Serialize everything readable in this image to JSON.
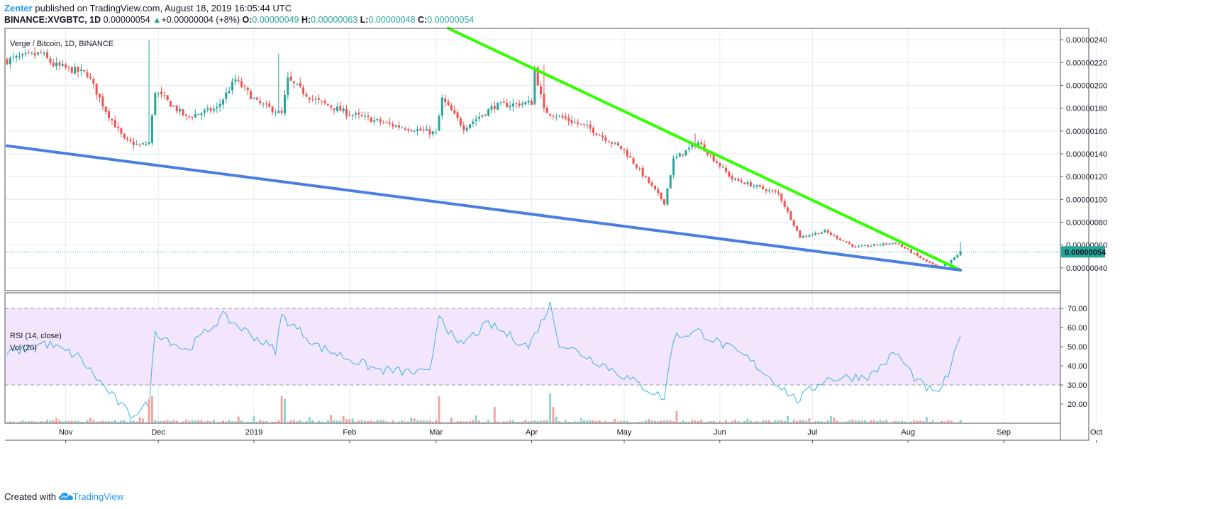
{
  "header": {
    "author": "Zenter",
    "published_text": "published on TradingView.com, August 18, 2019 16:05:44 UTC",
    "symbol": "BINANCE:XVGBTC, 1D",
    "last": "0.00000054",
    "change_arrow": "▲",
    "change": "+0.00000004 (+8%)",
    "o_label": "O:",
    "o": "0.00000049",
    "h_label": "H:",
    "h": "0.00000063",
    "l_label": "L:",
    "l": "0.00000048",
    "c_label": "C:",
    "c": "0.00000054"
  },
  "footer": {
    "created_with": "Created with",
    "brand": "TradingView",
    "brand_icon": "tradingview-cloud-icon"
  },
  "chart_data": {
    "type": "candlestick",
    "title": "Verge / Bitcoin, 1D, BINANCE",
    "x_tick_labels": [
      "Nov",
      "Dec",
      "2019",
      "Feb",
      "Mar",
      "Apr",
      "May",
      "Jun",
      "Jul",
      "Aug",
      "Sep",
      "Oct"
    ],
    "x_tick_dates": [
      "2018-11-01",
      "2018-12-01",
      "2019-01-01",
      "2019-02-01",
      "2019-03-01",
      "2019-04-01",
      "2019-05-01",
      "2019-06-01",
      "2019-07-01",
      "2019-08-01",
      "2019-09-01",
      "2019-10-01"
    ],
    "price_axis": {
      "ticks": [
        "0.00000040",
        "0.00000060",
        "0.00000080",
        "0.00000100",
        "0.00000120",
        "0.00000140",
        "0.00000160",
        "0.00000180",
        "0.00000200",
        "0.00000220",
        "0.00000240"
      ],
      "tick_values": [
        40,
        60,
        80,
        100,
        120,
        140,
        160,
        180,
        200,
        220,
        240
      ],
      "unit": "1e-8 BTC",
      "range": [
        20,
        250
      ],
      "last_price_label": "0.00000054",
      "last_price_value": 54
    },
    "colors": {
      "up": "#26a69a",
      "down": "#ef5350",
      "grid": "#e1ecf2",
      "rsi_line": "#3bb3e4",
      "rsi_band": "#f3e5fc",
      "volume_up": "#8fd3cc",
      "volume_down": "#f5a3a1",
      "trendline_top": "#33ff00",
      "trendline_bottom": "#4a7fe0"
    },
    "price_anchors": [
      {
        "date": "2018-10-13",
        "close": 222
      },
      {
        "date": "2018-10-24",
        "close": 228
      },
      {
        "date": "2018-10-28",
        "close": 218
      },
      {
        "date": "2018-11-08",
        "close": 210
      },
      {
        "date": "2018-11-14",
        "close": 178
      },
      {
        "date": "2018-11-20",
        "close": 152
      },
      {
        "date": "2018-11-25",
        "close": 147
      },
      {
        "date": "2018-11-28",
        "close": 150
      },
      {
        "date": "2018-11-30",
        "close": 195
      },
      {
        "date": "2018-12-10",
        "close": 172
      },
      {
        "date": "2018-12-20",
        "close": 180
      },
      {
        "date": "2018-12-26",
        "close": 205
      },
      {
        "date": "2019-01-02",
        "close": 185
      },
      {
        "date": "2019-01-10",
        "close": 175
      },
      {
        "date": "2019-01-12",
        "close": 205
      },
      {
        "date": "2019-01-20",
        "close": 188
      },
      {
        "date": "2019-02-01",
        "close": 175
      },
      {
        "date": "2019-02-15",
        "close": 165
      },
      {
        "date": "2019-03-01",
        "close": 158
      },
      {
        "date": "2019-03-03",
        "close": 188
      },
      {
        "date": "2019-03-10",
        "close": 163
      },
      {
        "date": "2019-03-20",
        "close": 182
      },
      {
        "date": "2019-04-01",
        "close": 185
      },
      {
        "date": "2019-04-02",
        "close": 215
      },
      {
        "date": "2019-04-05",
        "close": 178
      },
      {
        "date": "2019-04-20",
        "close": 162
      },
      {
        "date": "2019-05-01",
        "close": 143
      },
      {
        "date": "2019-05-14",
        "close": 97
      },
      {
        "date": "2019-05-17",
        "close": 135
      },
      {
        "date": "2019-05-25",
        "close": 150
      },
      {
        "date": "2019-06-05",
        "close": 118
      },
      {
        "date": "2019-06-20",
        "close": 105
      },
      {
        "date": "2019-06-27",
        "close": 67
      },
      {
        "date": "2019-07-05",
        "close": 72
      },
      {
        "date": "2019-07-15",
        "close": 58
      },
      {
        "date": "2019-07-28",
        "close": 62
      },
      {
        "date": "2019-08-06",
        "close": 47
      },
      {
        "date": "2019-08-11",
        "close": 40
      },
      {
        "date": "2019-08-14",
        "close": 44
      },
      {
        "date": "2019-08-18",
        "close": 54
      }
    ],
    "wick_spikes": [
      {
        "date": "2018-11-28",
        "high": 240
      },
      {
        "date": "2019-01-09",
        "high": 228
      },
      {
        "date": "2019-04-05",
        "high": 218
      },
      {
        "date": "2019-05-24",
        "high": 158
      },
      {
        "date": "2019-08-18",
        "high": 63
      }
    ],
    "trendlines": [
      {
        "name": "descending resistance",
        "color": "#33ff00",
        "start": {
          "date": "2019-03-05",
          "value": 250
        },
        "end": {
          "date": "2019-08-18",
          "value": 38
        }
      },
      {
        "name": "support",
        "color": "#4a7fe0",
        "start": {
          "date": "2018-10-13",
          "value": 147
        },
        "end": {
          "date": "2019-08-18",
          "value": 38
        }
      }
    ],
    "rsi": {
      "label": "RSI (14, close)",
      "band": [
        30,
        70
      ],
      "axis_ticks": [
        "20.00",
        "30.00",
        "40.00",
        "50.00",
        "60.00",
        "70.00"
      ],
      "tick_values": [
        20,
        30,
        40,
        50,
        60,
        70
      ],
      "range": [
        10,
        73
      ],
      "anchors": [
        {
          "date": "2018-10-13",
          "value": 46
        },
        {
          "date": "2018-10-25",
          "value": 52
        },
        {
          "date": "2018-11-05",
          "value": 45
        },
        {
          "date": "2018-11-14",
          "value": 28
        },
        {
          "date": "2018-11-22",
          "value": 14
        },
        {
          "date": "2018-11-28",
          "value": 20
        },
        {
          "date": "2018-11-30",
          "value": 58
        },
        {
          "date": "2018-12-10",
          "value": 48
        },
        {
          "date": "2018-12-22",
          "value": 66
        },
        {
          "date": "2019-01-08",
          "value": 48
        },
        {
          "date": "2019-01-10",
          "value": 66
        },
        {
          "date": "2019-01-22",
          "value": 50
        },
        {
          "date": "2019-02-10",
          "value": 38
        },
        {
          "date": "2019-02-27",
          "value": 36
        },
        {
          "date": "2019-03-02",
          "value": 68
        },
        {
          "date": "2019-03-08",
          "value": 50
        },
        {
          "date": "2019-03-18",
          "value": 62
        },
        {
          "date": "2019-03-31",
          "value": 50
        },
        {
          "date": "2019-04-07",
          "value": 72
        },
        {
          "date": "2019-04-10",
          "value": 52
        },
        {
          "date": "2019-04-25",
          "value": 40
        },
        {
          "date": "2019-05-14",
          "value": 23
        },
        {
          "date": "2019-05-17",
          "value": 55
        },
        {
          "date": "2019-05-25",
          "value": 58
        },
        {
          "date": "2019-06-10",
          "value": 44
        },
        {
          "date": "2019-06-26",
          "value": 22
        },
        {
          "date": "2019-07-05",
          "value": 33
        },
        {
          "date": "2019-07-20",
          "value": 35
        },
        {
          "date": "2019-07-28",
          "value": 47
        },
        {
          "date": "2019-08-04",
          "value": 32
        },
        {
          "date": "2019-08-10",
          "value": 25
        },
        {
          "date": "2019-08-14",
          "value": 35
        },
        {
          "date": "2019-08-18",
          "value": 55
        }
      ]
    },
    "volume": {
      "label": "Vol (20)",
      "spikes": [
        {
          "date": "2018-11-28",
          "value": 90
        },
        {
          "date": "2018-11-29",
          "value": 100
        },
        {
          "date": "2019-01-10",
          "value": 100
        },
        {
          "date": "2019-01-11",
          "value": 90
        },
        {
          "date": "2019-03-02",
          "value": 100
        },
        {
          "date": "2019-03-20",
          "value": 60
        },
        {
          "date": "2019-04-07",
          "value": 110
        },
        {
          "date": "2019-04-08",
          "value": 60
        },
        {
          "date": "2019-05-18",
          "value": 45
        }
      ]
    }
  }
}
